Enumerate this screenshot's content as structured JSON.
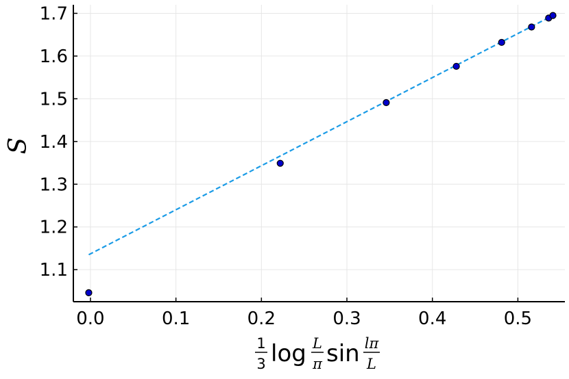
{
  "chart_data": {
    "type": "scatter",
    "xlabel": {
      "frac_num": "1",
      "frac_den": "3",
      "log": "log",
      "log_num": "L",
      "log_den": "π",
      "sin": "sin",
      "sin_num": "lπ",
      "sin_den": "L"
    },
    "ylabel": "S",
    "xlim": [
      -0.02,
      0.555
    ],
    "ylim": [
      1.025,
      1.72
    ],
    "x_ticks": [
      0.0,
      0.1,
      0.2,
      0.3,
      0.4,
      0.5
    ],
    "x_tick_labels": [
      "0.0",
      "0.1",
      "0.2",
      "0.3",
      "0.4",
      "0.5"
    ],
    "y_ticks": [
      1.1,
      1.2,
      1.3,
      1.4,
      1.5,
      1.6,
      1.7
    ],
    "y_tick_labels": [
      "1.1",
      "1.2",
      "1.3",
      "1.4",
      "1.5",
      "1.6",
      "1.7"
    ],
    "grid": true,
    "series": [
      {
        "kind": "scatter",
        "color": "#0000cc",
        "x": [
          -0.002,
          0.222,
          0.346,
          0.428,
          0.481,
          0.516,
          0.536,
          0.541
        ],
        "y": [
          1.046,
          1.349,
          1.491,
          1.576,
          1.632,
          1.668,
          1.689,
          1.695
        ]
      },
      {
        "kind": "line",
        "style": "dashed",
        "color": "#1a9be6",
        "x": [
          -0.002,
          0.541
        ],
        "y": [
          1.135,
          1.695
        ]
      }
    ]
  }
}
